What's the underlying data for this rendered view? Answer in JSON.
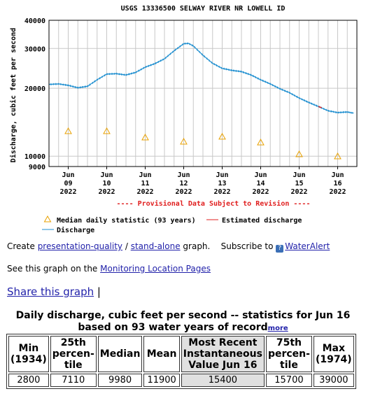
{
  "chart_data": {
    "type": "line",
    "title": "USGS 13336500 SELWAY RIVER NR LOWELL ID",
    "ylabel": "Discharge, cubic feet per second",
    "y_scale": "log",
    "ylim": [
      9000,
      40000
    ],
    "yticks": [
      "9000",
      "10000",
      "20000",
      "30000",
      "40000"
    ],
    "xlim": [
      "2022-06-08 12:00",
      "2022-06-16 12:00"
    ],
    "xticks": [
      {
        "line1": "Jun",
        "line2": "09",
        "line3": "2022"
      },
      {
        "line1": "Jun",
        "line2": "10",
        "line3": "2022"
      },
      {
        "line1": "Jun",
        "line2": "11",
        "line3": "2022"
      },
      {
        "line1": "Jun",
        "line2": "12",
        "line3": "2022"
      },
      {
        "line1": "Jun",
        "line2": "13",
        "line3": "2022"
      },
      {
        "line1": "Jun",
        "line2": "14",
        "line3": "2022"
      },
      {
        "line1": "Jun",
        "line2": "15",
        "line3": "2022"
      },
      {
        "line1": "Jun",
        "line2": "16",
        "line3": "2022"
      }
    ],
    "series": [
      {
        "name": "Discharge",
        "color": "#1f8fd0",
        "points": [
          [
            "2022-06-08 12:00",
            20800
          ],
          [
            "2022-06-08 18:00",
            20900
          ],
          [
            "2022-06-09 00:00",
            20600
          ],
          [
            "2022-06-09 06:00",
            20100
          ],
          [
            "2022-06-09 12:00",
            20400
          ],
          [
            "2022-06-09 18:00",
            21800
          ],
          [
            "2022-06-10 00:00",
            23100
          ],
          [
            "2022-06-10 06:00",
            23200
          ],
          [
            "2022-06-10 12:00",
            22900
          ],
          [
            "2022-06-10 18:00",
            23500
          ],
          [
            "2022-06-11 00:00",
            24800
          ],
          [
            "2022-06-11 06:00",
            25700
          ],
          [
            "2022-06-11 12:00",
            27000
          ],
          [
            "2022-06-11 18:00",
            29300
          ],
          [
            "2022-06-12 00:00",
            31500
          ],
          [
            "2022-06-12 03:00",
            31600
          ],
          [
            "2022-06-12 06:00",
            30800
          ],
          [
            "2022-06-12 12:00",
            28000
          ],
          [
            "2022-06-12 18:00",
            25800
          ],
          [
            "2022-06-13 00:00",
            24500
          ],
          [
            "2022-06-13 06:00",
            24000
          ],
          [
            "2022-06-13 12:00",
            23700
          ],
          [
            "2022-06-13 18:00",
            22900
          ],
          [
            "2022-06-14 00:00",
            21800
          ],
          [
            "2022-06-14 06:00",
            20900
          ],
          [
            "2022-06-14 12:00",
            19900
          ],
          [
            "2022-06-14 18:00",
            19100
          ],
          [
            "2022-06-15 00:00",
            18100
          ],
          [
            "2022-06-15 06:00",
            17300
          ],
          [
            "2022-06-15 12:00",
            16600
          ],
          [
            "2022-06-15 18:00",
            15900
          ],
          [
            "2022-06-16 00:00",
            15600
          ],
          [
            "2022-06-16 06:00",
            15700
          ],
          [
            "2022-06-16 10:00",
            15500
          ]
        ]
      },
      {
        "name": "Estimated discharge",
        "color": "#e02020",
        "points": [
          [
            "2022-06-15 12:00",
            16600
          ],
          [
            "2022-06-15 14:00",
            16400
          ]
        ]
      },
      {
        "name": "Median daily statistic (93 years)",
        "color": "#e8a000",
        "marker": "triangle",
        "points": [
          [
            "2022-06-09 00:00",
            12900
          ],
          [
            "2022-06-10 00:00",
            12900
          ],
          [
            "2022-06-11 00:00",
            12100
          ],
          [
            "2022-06-12 00:00",
            11600
          ],
          [
            "2022-06-13 00:00",
            12200
          ],
          [
            "2022-06-14 00:00",
            11500
          ],
          [
            "2022-06-15 00:00",
            10200
          ],
          [
            "2022-06-16 00:00",
            9980
          ]
        ]
      }
    ],
    "annotation": "---- Provisional Data Subject to Revision ----",
    "legend": [
      {
        "symbol": "triangle",
        "label": "Median daily statistic (93 years)"
      },
      {
        "symbol": "red-line",
        "label": "Estimated discharge"
      },
      {
        "symbol": "blue-line",
        "label": "Discharge"
      }
    ],
    "grid": true
  },
  "links": {
    "create_prefix": "Create ",
    "presentation_quality": "presentation-quality",
    "slash": " / ",
    "stand_alone": "stand-alone",
    "graph_suffix": " graph.",
    "subscribe_prefix": "Subscribe to ",
    "water_alert": "WaterAlert",
    "see_graph": "See this graph on the ",
    "monitoring_pages": "Monitoring Location Pages",
    "share": "Share this graph",
    "share_sep": "|"
  },
  "stats": {
    "heading": "Daily discharge, cubic feet per second -- statistics for Jun 16 based on 93 water years of record",
    "more": "more",
    "columns": [
      {
        "lines": [
          "Min",
          "(1934)"
        ],
        "value": "2800"
      },
      {
        "lines": [
          "25th",
          "percen-",
          "tile"
        ],
        "value": "7110"
      },
      {
        "lines": [
          "Median"
        ],
        "value": "9980"
      },
      {
        "lines": [
          "Mean"
        ],
        "value": "11900"
      },
      {
        "lines": [
          "Most Recent",
          "Instantaneous",
          "Value Jun 16"
        ],
        "value": "15400",
        "highlight": true
      },
      {
        "lines": [
          "75th",
          "percen-",
          "tile"
        ],
        "value": "15700"
      },
      {
        "lines": [
          "Max",
          "(1974)"
        ],
        "value": "39000"
      }
    ]
  }
}
